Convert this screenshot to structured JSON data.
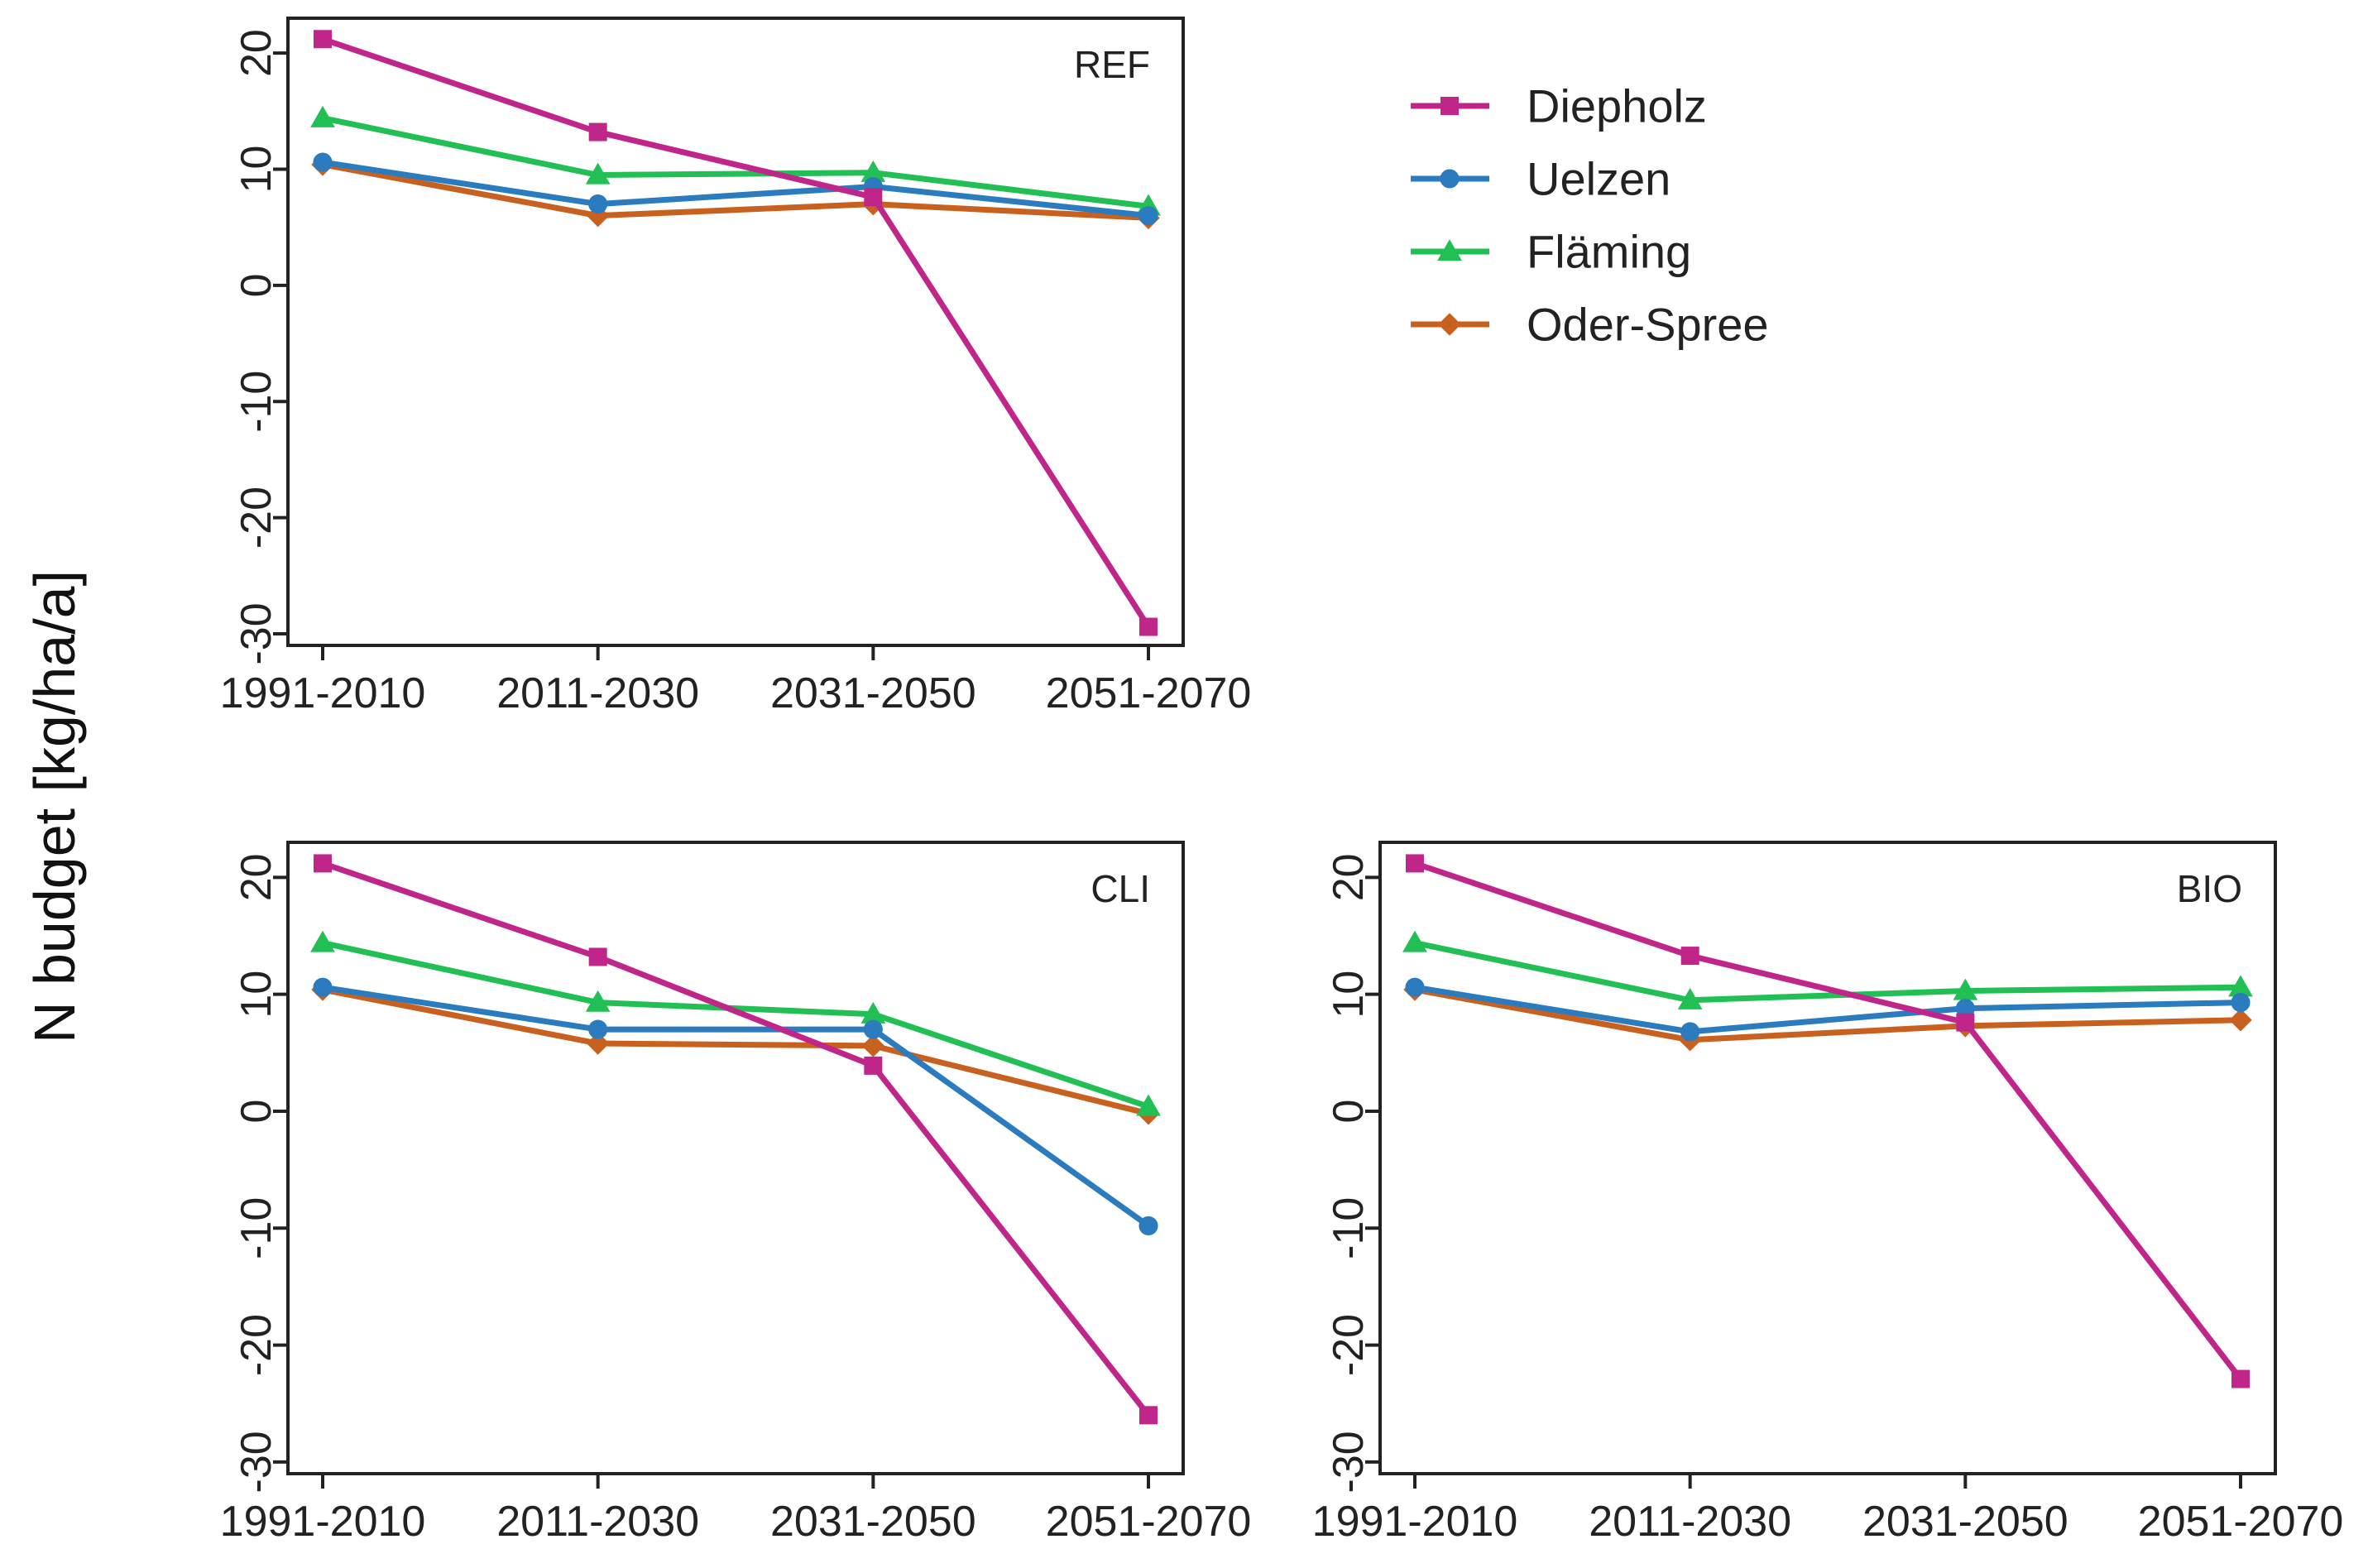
{
  "chart_data": {
    "type": "line",
    "ylabel": "N budget [kg/ha/a]",
    "categories": [
      "1991-2010",
      "2011-2030",
      "2031-2050",
      "2051-2070"
    ],
    "ylim": [
      -31,
      23
    ],
    "yticks": [
      20,
      10,
      0,
      -10,
      -20,
      -30
    ],
    "legend": {
      "placement": "top-right",
      "entries": [
        {
          "name": "Diepholz",
          "color": "#c0268a",
          "marker": "square"
        },
        {
          "name": "Uelzen",
          "color": "#2b7bbf",
          "marker": "circle"
        },
        {
          "name": "Fläming",
          "color": "#22bf55",
          "marker": "triangle"
        },
        {
          "name": "Oder-Spree",
          "color": "#c8611f",
          "marker": "diamond"
        }
      ]
    },
    "panels": [
      {
        "title": "REF",
        "series": [
          {
            "name": "Diepholz",
            "values": [
              21.2,
              13.2,
              7.6,
              -29.4
            ]
          },
          {
            "name": "Uelzen",
            "values": [
              10.6,
              7.0,
              8.5,
              6.0
            ]
          },
          {
            "name": "Fläming",
            "values": [
              14.4,
              9.5,
              9.7,
              6.8
            ]
          },
          {
            "name": "Oder-Spree",
            "values": [
              10.4,
              6.0,
              7.0,
              5.8
            ]
          }
        ]
      },
      {
        "title": "CLI",
        "series": [
          {
            "name": "Diepholz",
            "values": [
              21.2,
              13.2,
              3.9,
              -26.0
            ]
          },
          {
            "name": "Uelzen",
            "values": [
              10.6,
              7.0,
              7.0,
              -9.8
            ]
          },
          {
            "name": "Fläming",
            "values": [
              14.4,
              9.3,
              8.3,
              0.4
            ]
          },
          {
            "name": "Oder-Spree",
            "values": [
              10.4,
              5.8,
              5.6,
              -0.2
            ]
          }
        ]
      },
      {
        "title": "BIO",
        "series": [
          {
            "name": "Diepholz",
            "values": [
              21.2,
              13.3,
              7.6,
              -22.9
            ]
          },
          {
            "name": "Uelzen",
            "values": [
              10.6,
              6.8,
              8.8,
              9.3
            ]
          },
          {
            "name": "Fläming",
            "values": [
              14.4,
              9.5,
              10.3,
              10.6
            ]
          },
          {
            "name": "Oder-Spree",
            "values": [
              10.4,
              6.1,
              7.3,
              7.8
            ]
          }
        ]
      }
    ]
  }
}
